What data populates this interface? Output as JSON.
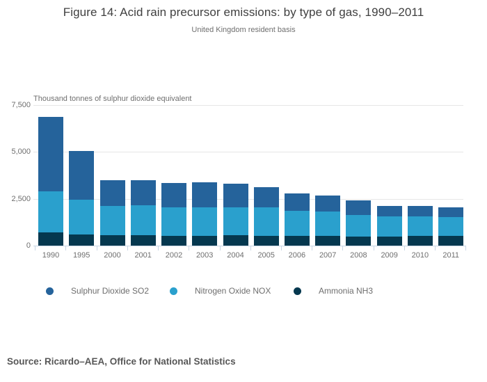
{
  "header": {
    "title": "Figure 14: Acid rain precursor emissions: by type of gas, 1990–2011",
    "subtitle": "United Kingdom resident basis"
  },
  "chart_data": {
    "type": "bar",
    "stacked": true,
    "title": "Figure 14: Acid rain precursor emissions: by type of gas, 1990–2011",
    "subtitle": "United Kingdom resident basis",
    "ylabel": "Thousand tonnes of sulphur dioxide equivalent",
    "xlabel": "",
    "ylim": [
      0,
      7500
    ],
    "grid": "horizontal",
    "legend_position": "bottom",
    "categories": [
      "1990",
      "1995",
      "2000",
      "2001",
      "2002",
      "2003",
      "2004",
      "2005",
      "2006",
      "2007",
      "2008",
      "2009",
      "2010",
      "2011"
    ],
    "yticks": [
      {
        "value": 0,
        "label": "0"
      },
      {
        "value": 2500,
        "label": "2,500"
      },
      {
        "value": 5000,
        "label": "5,000"
      },
      {
        "value": 7500,
        "label": "7,500"
      }
    ],
    "stack_order_bottom_to_top": [
      "Ammonia NH3",
      "Nitrogen Oxide NOX",
      "Sulphur Dioxide SO2"
    ],
    "series": [
      {
        "name": "Sulphur Dioxide SO2",
        "color": "#25639b",
        "values": [
          3990,
          2580,
          1380,
          1340,
          1320,
          1330,
          1260,
          1070,
          930,
          860,
          800,
          550,
          540,
          520
        ]
      },
      {
        "name": "Nitrogen Oxide NOX",
        "color": "#2aa0cd",
        "values": [
          2200,
          1860,
          1560,
          1590,
          1500,
          1520,
          1480,
          1520,
          1350,
          1300,
          1140,
          1080,
          1050,
          1010
        ]
      },
      {
        "name": "Ammonia NH3",
        "color": "#05384f",
        "values": [
          690,
          610,
          560,
          560,
          540,
          540,
          560,
          520,
          520,
          520,
          490,
          490,
          520,
          520
        ]
      }
    ]
  },
  "footer": {
    "source": "Source: Ricardo–AEA, Office for National Statistics"
  },
  "colors": {
    "background": "#ffffff",
    "gridline": "#e6e6e6",
    "axis_line": "#c9d6e4",
    "title_text": "#3f3f3f",
    "muted_text": "#6e6e6e",
    "source_text": "#575757"
  }
}
